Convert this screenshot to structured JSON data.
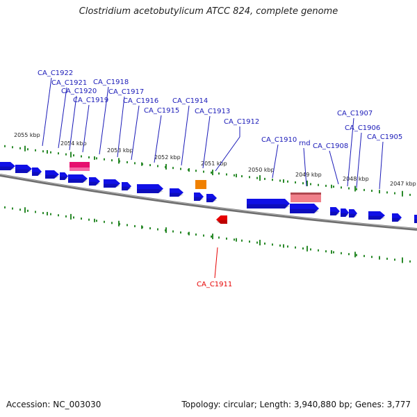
{
  "title": "Clostridium acetobutylicum ATCC 824, complete genome",
  "footer": {
    "accession": "Accession: NC_003030",
    "summary": "Topology: circular; Length: 3,940,880 bp; Genes: 3,777"
  },
  "colors": {
    "gene_forward": "#1010e6",
    "gene_label": "#1a1ab8",
    "highlight_gene": "#e60000",
    "tick": "#2a8a2a",
    "backbone": "#808080",
    "rrna": "#f0808a",
    "trna": "#e6106e",
    "misc": "#f08000"
  },
  "scale": {
    "unit": "kbp",
    "ticks": [
      "2055 kbp",
      "2054 kbp",
      "2053 kbp",
      "2052 kbp",
      "2051 kbp",
      "2050 kbp",
      "2049 kbp",
      "2048 kbp",
      "2047 kbp"
    ]
  },
  "genes": [
    {
      "id": "CA_C1922"
    },
    {
      "id": "CA_C1921"
    },
    {
      "id": "CA_C1920"
    },
    {
      "id": "CA_C1919"
    },
    {
      "id": "CA_C1918"
    },
    {
      "id": "CA_C1917"
    },
    {
      "id": "CA_C1916"
    },
    {
      "id": "CA_C1915"
    },
    {
      "id": "CA_C1914"
    },
    {
      "id": "CA_C1913"
    },
    {
      "id": "CA_C1912"
    },
    {
      "id": "CA_C1910"
    },
    {
      "id": "rnd"
    },
    {
      "id": "CA_C1908"
    },
    {
      "id": "CA_C1907"
    },
    {
      "id": "CA_C1906"
    },
    {
      "id": "CA_C1905"
    },
    {
      "id": "CA_C1911"
    }
  ]
}
